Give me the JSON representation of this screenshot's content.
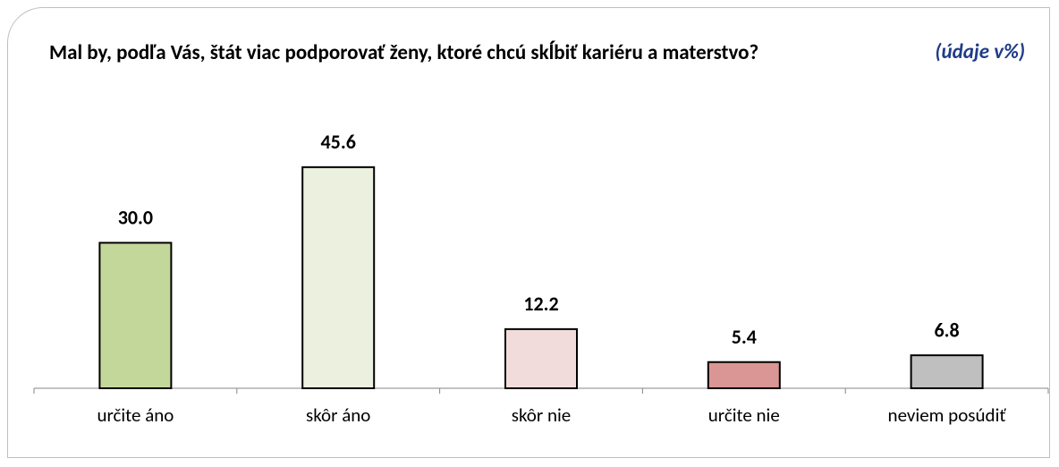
{
  "chart_data": {
    "type": "bar",
    "title": "Mal by, podľa Vás, štát viac podporovať ženy, ktoré chcú skĺbiť kariéru a materstvo?",
    "subtitle": "(údaje v%)",
    "categories": [
      "určite áno",
      "skôr áno",
      "skôr nie",
      "určite nie",
      "neviem posúdiť"
    ],
    "values": [
      30.0,
      45.6,
      12.2,
      5.4,
      6.8
    ],
    "value_labels": [
      "30.0",
      "45.6",
      "12.2",
      "5.4",
      "6.8"
    ],
    "colors": [
      "#c4d79b",
      "#ebf1de",
      "#f2dcdb",
      "#da9694",
      "#bfbfbf"
    ],
    "ylim": [
      0,
      50
    ]
  }
}
